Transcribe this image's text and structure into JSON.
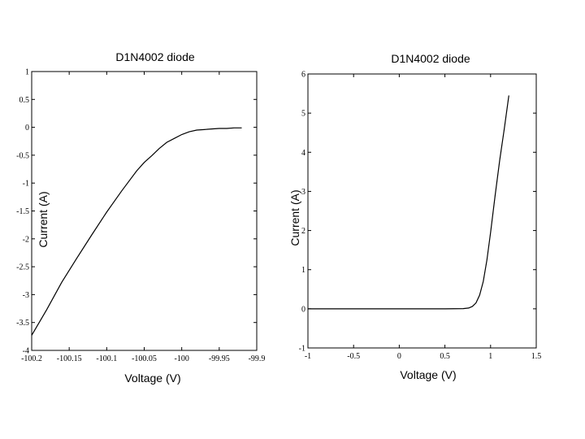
{
  "chart_data": [
    {
      "type": "line",
      "title": "D1N4002 diode",
      "xlabel": "Voltage (V)",
      "ylabel": "Current (A)",
      "xlim": [
        -100.2,
        -99.9
      ],
      "ylim": [
        -4,
        1
      ],
      "xticks": [
        -100.2,
        -100.15,
        -100.1,
        -100.05,
        -100,
        -99.95,
        -99.9
      ],
      "xtick_labels": [
        "-100.2",
        "-100.15",
        "-100.1",
        "-100.05",
        "-100",
        "-99.95",
        "-99.9"
      ],
      "yticks": [
        1,
        0.5,
        0,
        -0.5,
        -1,
        -1.5,
        -2,
        -2.5,
        -3,
        -3.5,
        -4
      ],
      "ytick_labels": [
        "1",
        "0.5",
        "0",
        "-0.5",
        "-1",
        "-1.5",
        "-2",
        "-2.5",
        "-3",
        "-3.5",
        "-4"
      ],
      "grid": false,
      "series": [
        {
          "x": [
            -100.2,
            -100.18,
            -100.16,
            -100.14,
            -100.12,
            -100.1,
            -100.08,
            -100.06,
            -100.05,
            -100.04,
            -100.03,
            -100.02,
            -100.01,
            -100.0,
            -99.99,
            -99.98,
            -99.97,
            -99.96,
            -99.95,
            -99.94,
            -99.93,
            -99.92
          ],
          "y": [
            -3.73,
            -3.27,
            -2.78,
            -2.35,
            -1.93,
            -1.52,
            -1.14,
            -0.78,
            -0.63,
            -0.51,
            -0.38,
            -0.27,
            -0.2,
            -0.13,
            -0.08,
            -0.05,
            -0.04,
            -0.03,
            -0.02,
            -0.02,
            -0.01,
            -0.01
          ]
        }
      ]
    },
    {
      "type": "line",
      "title": "D1N4002 diode",
      "xlabel": "Voltage (V)",
      "ylabel": "Current (A)",
      "xlim": [
        -1,
        1.5
      ],
      "ylim": [
        -1,
        6
      ],
      "xticks": [
        -1,
        -0.5,
        0,
        0.5,
        1,
        1.5
      ],
      "xtick_labels": [
        "-1",
        "-0.5",
        "0",
        "0.5",
        "1",
        "1.5"
      ],
      "yticks": [
        6,
        5,
        4,
        3,
        2,
        1,
        0,
        -1
      ],
      "ytick_labels": [
        "6",
        "5",
        "4",
        "3",
        "2",
        "1",
        "0",
        "-1"
      ],
      "grid": false,
      "series": [
        {
          "x": [
            -1,
            0,
            0.5,
            0.7,
            0.76,
            0.8,
            0.84,
            0.88,
            0.92,
            0.96,
            1.0,
            1.05,
            1.1,
            1.15,
            1.2
          ],
          "y": [
            0,
            0,
            0,
            0.005,
            0.02,
            0.06,
            0.15,
            0.35,
            0.7,
            1.25,
            1.95,
            2.9,
            3.8,
            4.6,
            5.45
          ]
        }
      ]
    }
  ]
}
